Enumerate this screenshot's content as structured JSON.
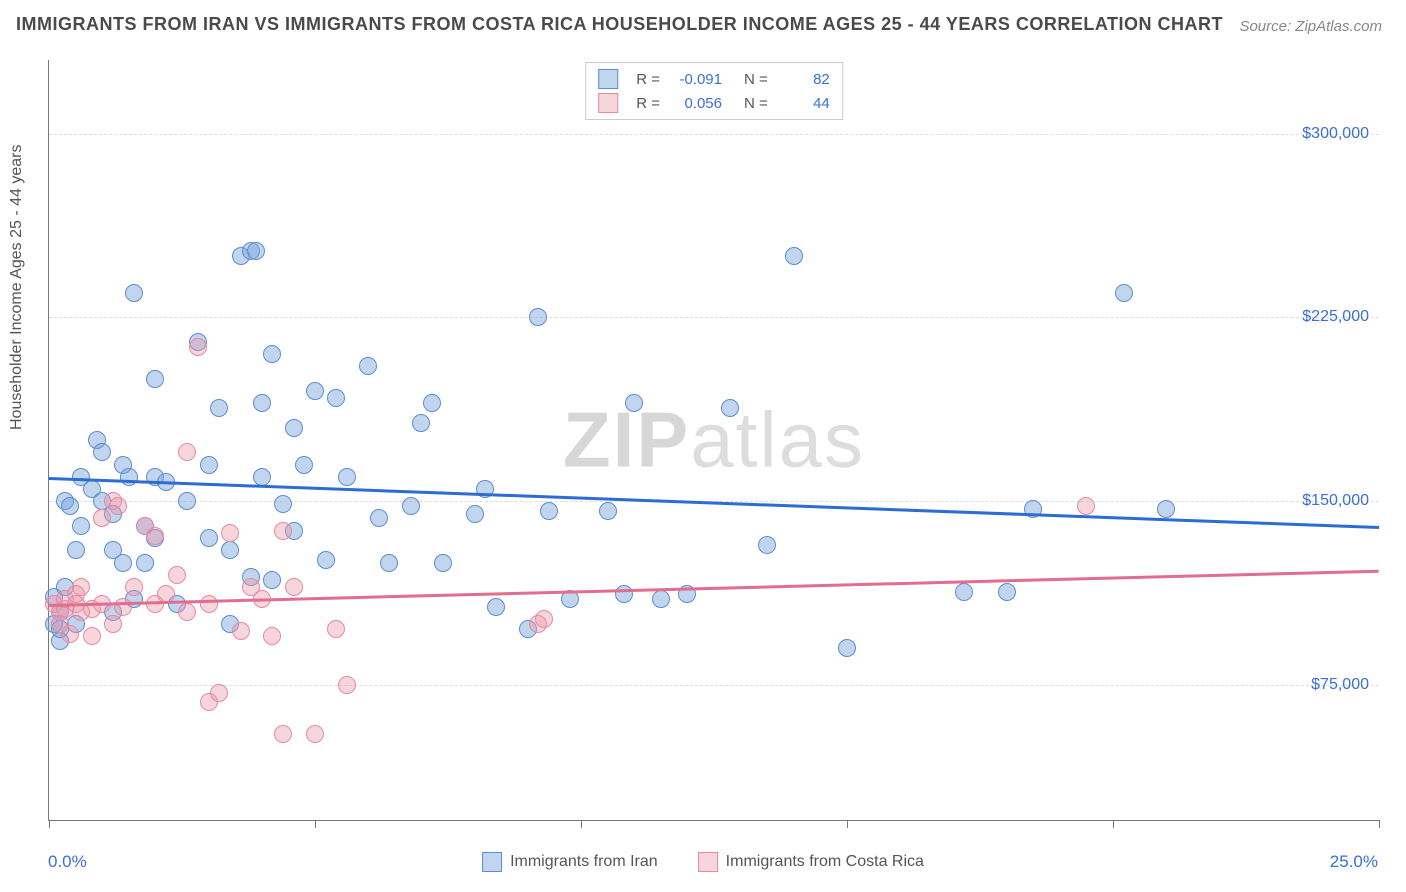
{
  "title": "IMMIGRANTS FROM IRAN VS IMMIGRANTS FROM COSTA RICA HOUSEHOLDER INCOME AGES 25 - 44 YEARS CORRELATION CHART",
  "source": "Source: ZipAtlas.com",
  "watermark": {
    "bold": "ZIP",
    "light": "atlas"
  },
  "y_axis": {
    "label": "Householder Income Ages 25 - 44 years",
    "ticks": [
      75000,
      150000,
      225000,
      300000
    ],
    "tick_labels": [
      "$75,000",
      "$150,000",
      "$225,000",
      "$300,000"
    ],
    "domain_min": 20000,
    "domain_max": 330000
  },
  "x_axis": {
    "min_label": "0.0%",
    "max_label": "25.0%",
    "domain_min": 0,
    "domain_max": 25,
    "ticks": [
      0,
      5,
      10,
      15,
      20,
      25
    ]
  },
  "series": [
    {
      "key": "iran",
      "label": "Immigrants from Iran",
      "fill": "rgba(120,162,219,0.45)",
      "stroke": "#5e8dd3",
      "line_color": "#2d6cd2",
      "R": "-0.091",
      "N": "82",
      "marker_radius": 9,
      "trend": {
        "y_at_xmin": 160000,
        "y_at_xmax": 140000
      },
      "points": [
        [
          0.1,
          111000
        ],
        [
          0.1,
          100000
        ],
        [
          0.2,
          105000
        ],
        [
          0.2,
          93000
        ],
        [
          0.3,
          115000
        ],
        [
          0.3,
          150000
        ],
        [
          0.4,
          148000
        ],
        [
          0.5,
          100000
        ],
        [
          0.5,
          130000
        ],
        [
          0.6,
          160000
        ],
        [
          0.6,
          140000
        ],
        [
          0.8,
          155000
        ],
        [
          0.9,
          175000
        ],
        [
          1.0,
          170000
        ],
        [
          1.0,
          150000
        ],
        [
          1.2,
          145000
        ],
        [
          1.2,
          130000
        ],
        [
          1.2,
          105000
        ],
        [
          1.4,
          125000
        ],
        [
          1.4,
          165000
        ],
        [
          1.5,
          160000
        ],
        [
          1.6,
          235000
        ],
        [
          1.6,
          110000
        ],
        [
          1.8,
          140000
        ],
        [
          1.8,
          125000
        ],
        [
          2.0,
          200000
        ],
        [
          2.0,
          160000
        ],
        [
          2.0,
          135000
        ],
        [
          2.2,
          158000
        ],
        [
          2.4,
          108000
        ],
        [
          2.6,
          150000
        ],
        [
          2.8,
          215000
        ],
        [
          3.0,
          165000
        ],
        [
          3.0,
          135000
        ],
        [
          3.2,
          188000
        ],
        [
          3.4,
          130000
        ],
        [
          3.4,
          100000
        ],
        [
          3.6,
          250000
        ],
        [
          3.8,
          252000
        ],
        [
          3.8,
          119000
        ],
        [
          3.9,
          252000
        ],
        [
          4.0,
          190000
        ],
        [
          4.0,
          160000
        ],
        [
          4.2,
          210000
        ],
        [
          4.2,
          118000
        ],
        [
          4.4,
          149000
        ],
        [
          4.6,
          138000
        ],
        [
          4.6,
          180000
        ],
        [
          4.8,
          165000
        ],
        [
          5.0,
          195000
        ],
        [
          5.2,
          126000
        ],
        [
          5.4,
          192000
        ],
        [
          5.6,
          160000
        ],
        [
          6.0,
          205000
        ],
        [
          6.2,
          143000
        ],
        [
          6.4,
          125000
        ],
        [
          6.8,
          148000
        ],
        [
          7.0,
          182000
        ],
        [
          7.2,
          190000
        ],
        [
          7.4,
          125000
        ],
        [
          8.0,
          145000
        ],
        [
          8.2,
          155000
        ],
        [
          8.4,
          107000
        ],
        [
          9.0,
          98000
        ],
        [
          9.2,
          225000
        ],
        [
          9.4,
          146000
        ],
        [
          9.8,
          110000
        ],
        [
          10.5,
          146000
        ],
        [
          10.8,
          112000
        ],
        [
          11.0,
          190000
        ],
        [
          11.5,
          110000
        ],
        [
          12.0,
          112000
        ],
        [
          12.8,
          188000
        ],
        [
          13.5,
          132000
        ],
        [
          14.0,
          250000
        ],
        [
          15.0,
          90000
        ],
        [
          17.2,
          113000
        ],
        [
          18.0,
          113000
        ],
        [
          18.5,
          147000
        ],
        [
          20.2,
          235000
        ],
        [
          21.0,
          147000
        ],
        [
          0.2,
          98000
        ]
      ]
    },
    {
      "key": "costa_rica",
      "label": "Immigrants from Costa Rica",
      "fill": "rgba(235,150,170,0.40)",
      "stroke": "#e58aa2",
      "line_color": "#e26d8e",
      "R": "0.056",
      "N": "44",
      "marker_radius": 9,
      "trend": {
        "y_at_xmin": 108000,
        "y_at_xmax": 122000
      },
      "points": [
        [
          0.1,
          108000
        ],
        [
          0.2,
          105000
        ],
        [
          0.2,
          100000
        ],
        [
          0.3,
          106000
        ],
        [
          0.3,
          110000
        ],
        [
          0.4,
          96000
        ],
        [
          0.5,
          108000
        ],
        [
          0.5,
          112000
        ],
        [
          0.6,
          105000
        ],
        [
          0.6,
          115000
        ],
        [
          0.8,
          106000
        ],
        [
          0.8,
          95000
        ],
        [
          1.0,
          143000
        ],
        [
          1.0,
          108000
        ],
        [
          1.2,
          150000
        ],
        [
          1.2,
          100000
        ],
        [
          1.3,
          148000
        ],
        [
          1.4,
          107000
        ],
        [
          1.6,
          115000
        ],
        [
          1.8,
          140000
        ],
        [
          2.0,
          136000
        ],
        [
          2.0,
          108000
        ],
        [
          2.2,
          112000
        ],
        [
          2.4,
          120000
        ],
        [
          2.6,
          170000
        ],
        [
          2.6,
          105000
        ],
        [
          2.8,
          213000
        ],
        [
          3.0,
          68000
        ],
        [
          3.0,
          108000
        ],
        [
          3.2,
          72000
        ],
        [
          3.4,
          137000
        ],
        [
          3.6,
          97000
        ],
        [
          3.8,
          115000
        ],
        [
          4.0,
          110000
        ],
        [
          4.2,
          95000
        ],
        [
          4.4,
          55000
        ],
        [
          4.4,
          138000
        ],
        [
          4.6,
          115000
        ],
        [
          5.0,
          55000
        ],
        [
          5.4,
          98000
        ],
        [
          5.6,
          75000
        ],
        [
          9.2,
          100000
        ],
        [
          9.3,
          102000
        ],
        [
          19.5,
          148000
        ]
      ]
    }
  ],
  "top_legend": {
    "R_label": "R =",
    "N_label": "N ="
  },
  "colors": {
    "title": "#4a4a4a",
    "axis_value": "#3b6fd6",
    "grid": "#dddddd"
  }
}
